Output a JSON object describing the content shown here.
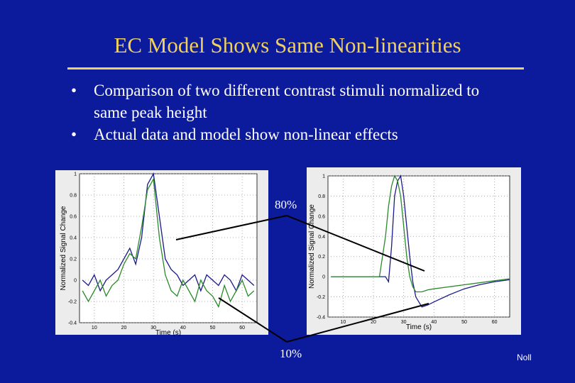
{
  "slide": {
    "title": "EC Model Shows Same Non-linearities",
    "bullets": [
      "Comparison of two different contrast stimuli normalized to same peak height",
      "Actual data and model show non-linear effects"
    ],
    "label_high": "80%",
    "label_low": "10%",
    "footer": "Noll"
  },
  "chart_data": [
    {
      "type": "line",
      "xlabel": "Time (s)",
      "ylabel": "Normalized Signal Change",
      "xlim": [
        5,
        65
      ],
      "ylim": [
        -0.4,
        1
      ],
      "xticks": [
        10,
        20,
        30,
        40,
        50,
        60
      ],
      "yticks": [
        -0.4,
        -0.2,
        0,
        0.2,
        0.4,
        0.6,
        0.8,
        1
      ],
      "grid": true,
      "x": [
        6,
        8,
        10,
        12,
        14,
        16,
        18,
        20,
        22,
        24,
        26,
        28,
        30,
        32,
        34,
        36,
        38,
        40,
        42,
        44,
        46,
        48,
        50,
        52,
        54,
        56,
        58,
        60,
        62,
        64
      ],
      "series": [
        {
          "color": "#1a1a8c",
          "values": [
            0,
            -0.05,
            0.05,
            -0.1,
            0,
            0.05,
            0.1,
            0.2,
            0.3,
            0.15,
            0.4,
            0.9,
            1.0,
            0.6,
            0.2,
            0.1,
            0.05,
            -0.05,
            0,
            0.05,
            -0.1,
            0.05,
            0,
            -0.05,
            0.05,
            0,
            -0.1,
            0.05,
            0,
            -0.05
          ]
        },
        {
          "color": "#2a8a2a",
          "values": [
            -0.1,
            -0.2,
            -0.1,
            0,
            -0.15,
            -0.05,
            0,
            0.15,
            0.25,
            0.2,
            0.5,
            0.85,
            0.95,
            0.4,
            0.05,
            -0.1,
            -0.15,
            0,
            -0.1,
            -0.2,
            0,
            -0.1,
            -0.15,
            -0.25,
            -0.05,
            -0.2,
            -0.1,
            0,
            -0.15,
            -0.1
          ]
        }
      ]
    },
    {
      "type": "line",
      "xlabel": "Time (s)",
      "ylabel": "Normalized Signal Change",
      "xlim": [
        5,
        65
      ],
      "ylim": [
        -0.4,
        1
      ],
      "xticks": [
        10,
        20,
        30,
        40,
        50,
        60
      ],
      "yticks": [
        -0.4,
        -0.2,
        0,
        0.2,
        0.4,
        0.6,
        0.8,
        1
      ],
      "grid": true,
      "x": [
        6,
        10,
        15,
        20,
        22,
        24,
        25,
        26,
        27,
        28,
        29,
        30,
        31,
        32,
        33,
        34,
        36,
        38,
        40,
        45,
        50,
        55,
        60,
        65
      ],
      "series": [
        {
          "color": "#1a1a8c",
          "values": [
            0,
            0,
            0,
            0,
            0,
            0,
            -0.05,
            0.3,
            0.8,
            0.95,
            1.0,
            0.8,
            0.5,
            0.2,
            -0.05,
            -0.2,
            -0.3,
            -0.28,
            -0.25,
            -0.18,
            -0.12,
            -0.08,
            -0.05,
            -0.03
          ]
        },
        {
          "color": "#2a8a2a",
          "values": [
            0,
            0,
            0,
            0,
            0,
            0.4,
            0.7,
            0.9,
            1.0,
            0.95,
            0.8,
            0.5,
            0.2,
            0,
            -0.1,
            -0.15,
            -0.15,
            -0.13,
            -0.12,
            -0.1,
            -0.08,
            -0.06,
            -0.04,
            -0.02
          ]
        }
      ]
    }
  ]
}
